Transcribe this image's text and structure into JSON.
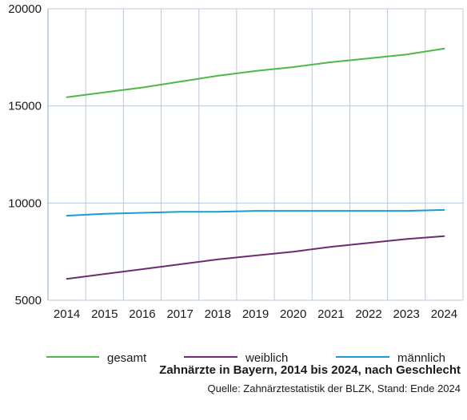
{
  "chart_data": {
    "type": "line",
    "title": "Zahnärzte in Bayern, 2014 bis 2024, nach Geschlecht",
    "source": "Quelle: Zahnärztestatistik der BLZK, Stand: Ende 2024",
    "x": [
      2014,
      2015,
      2016,
      2017,
      2018,
      2019,
      2020,
      2021,
      2022,
      2023,
      2024
    ],
    "ylim": [
      5000,
      20000
    ],
    "yticks": [
      5000,
      10000,
      15000,
      20000
    ],
    "grid": true,
    "legend_position": "bottom",
    "series": [
      {
        "name": "gesamt",
        "color": "#4db848",
        "values": [
          15450,
          15700,
          15950,
          16250,
          16550,
          16800,
          17000,
          17250,
          17450,
          17650,
          17950
        ]
      },
      {
        "name": "weiblich",
        "color": "#6b2c6e",
        "values": [
          6100,
          6350,
          6600,
          6850,
          7100,
          7300,
          7500,
          7750,
          7950,
          8150,
          8300
        ]
      },
      {
        "name": "männlich",
        "color": "#1a9bd7",
        "values": [
          9350,
          9450,
          9500,
          9550,
          9550,
          9600,
          9600,
          9600,
          9600,
          9600,
          9650
        ]
      }
    ]
  }
}
